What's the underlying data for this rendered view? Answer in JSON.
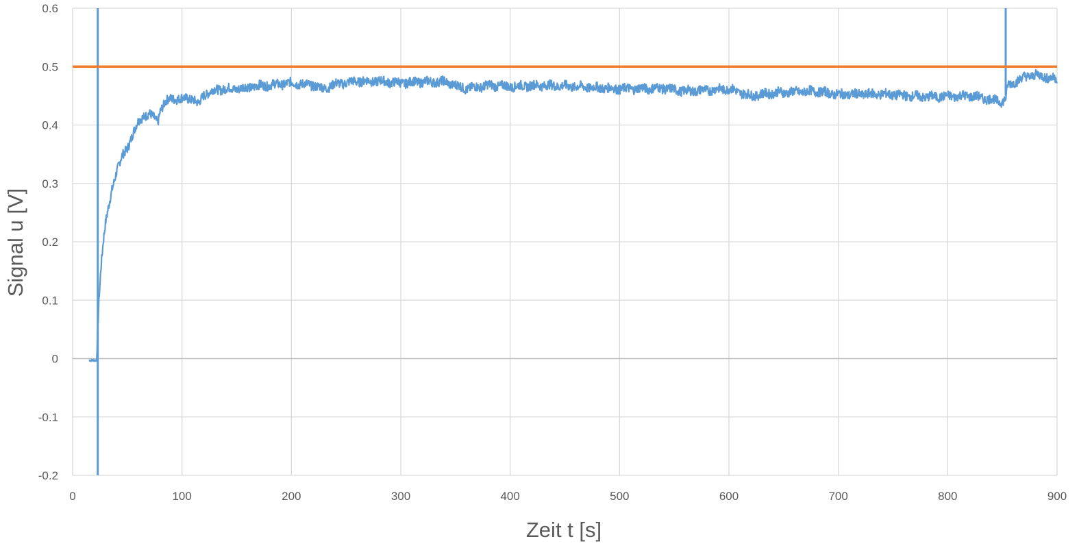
{
  "chart_data": {
    "type": "line",
    "title": "",
    "xlabel": "Zeit t [s]",
    "ylabel": "Signal u [V]",
    "xlim": [
      0,
      900
    ],
    "ylim": [
      -0.2,
      0.6
    ],
    "x_ticks": [
      "0",
      "100",
      "200",
      "300",
      "400",
      "500",
      "600",
      "700",
      "800",
      "900"
    ],
    "y_ticks": [
      "0.6",
      "0.5",
      "0.4",
      "0.3",
      "0.2",
      "0.1",
      "0",
      "-0.1",
      "-0.2"
    ],
    "grid": true,
    "legend": "none",
    "series": [
      {
        "color": "#5b9bd5",
        "style": "noisy measurement trace",
        "x": [
          15,
          22,
          23,
          24,
          26,
          28,
          30,
          33,
          36,
          40,
          45,
          50,
          55,
          60,
          65,
          70,
          75,
          78,
          80,
          85,
          90,
          100,
          110,
          115,
          120,
          130,
          140,
          150,
          170,
          190,
          200,
          220,
          230,
          240,
          260,
          280,
          300,
          320,
          340,
          360,
          380,
          400,
          430,
          460,
          500,
          540,
          560,
          600,
          620,
          640,
          680,
          700,
          740,
          780,
          820,
          850,
          853,
          855,
          870,
          880,
          900
        ],
        "values": [
          -0.003,
          -0.003,
          0.05,
          0.1,
          0.16,
          0.2,
          0.23,
          0.26,
          0.29,
          0.32,
          0.345,
          0.36,
          0.385,
          0.405,
          0.415,
          0.42,
          0.41,
          0.405,
          0.425,
          0.44,
          0.445,
          0.445,
          0.445,
          0.435,
          0.452,
          0.46,
          0.462,
          0.462,
          0.467,
          0.47,
          0.472,
          0.468,
          0.462,
          0.47,
          0.475,
          0.475,
          0.472,
          0.474,
          0.474,
          0.462,
          0.468,
          0.466,
          0.468,
          0.466,
          0.462,
          0.463,
          0.458,
          0.462,
          0.45,
          0.455,
          0.458,
          0.452,
          0.453,
          0.448,
          0.45,
          0.44,
          0.445,
          0.468,
          0.482,
          0.486,
          0.478
        ]
      },
      {
        "color": "#5b9bd5",
        "style": "vertical marker",
        "x": [
          23,
          23
        ],
        "values": [
          -0.2,
          0.6
        ]
      },
      {
        "color": "#5b9bd5",
        "style": "vertical marker",
        "x": [
          853,
          853
        ],
        "values": [
          0.45,
          0.6
        ]
      },
      {
        "color": "#ed7d31",
        "style": "reference line",
        "x": [
          0,
          900
        ],
        "values": [
          0.5,
          0.5
        ]
      }
    ]
  }
}
